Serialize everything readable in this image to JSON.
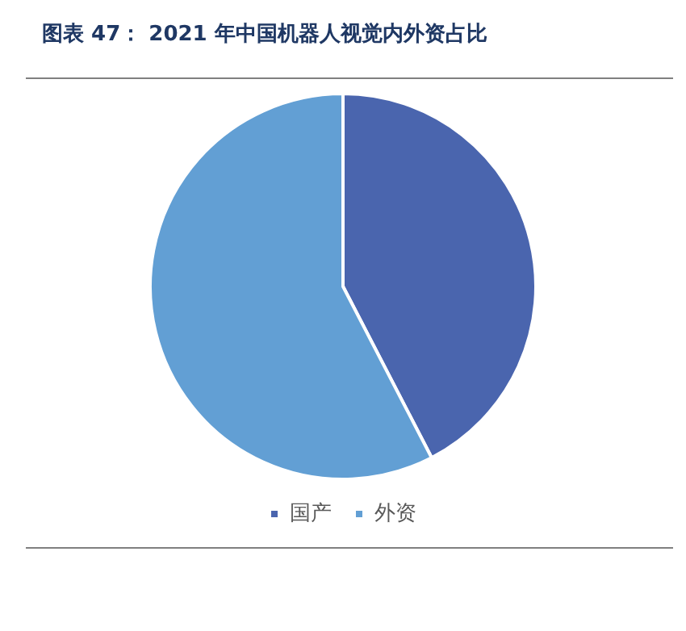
{
  "chart_data": {
    "type": "pie",
    "title": "图表 47： 2021 年中国机器人视觉内外资占比",
    "categories": [
      "国产",
      "外资"
    ],
    "values": [
      42.4,
      57.6
    ],
    "colors": [
      "#4a65ae",
      "#629fd4"
    ],
    "legend": "bottom"
  }
}
